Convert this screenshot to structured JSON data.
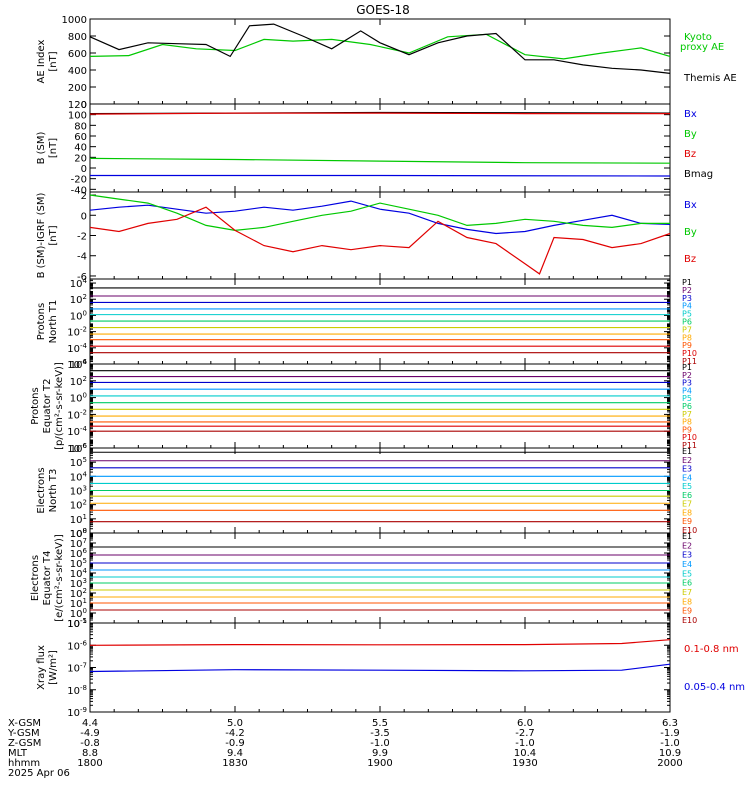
{
  "title": "GOES-18",
  "colors": {
    "black": "#000000",
    "red": "#e00000",
    "green": "#00c800",
    "blue": "#0000e0",
    "xray_red": "#e00000",
    "xray_blue": "#0000e0",
    "channels11": [
      "#000000",
      "#6a006a",
      "#0000cc",
      "#0099ff",
      "#00cccc",
      "#00cc66",
      "#cccc00",
      "#ffaa00",
      "#ff5500",
      "#dd0000",
      "#aa0000"
    ],
    "channels10": [
      "#000000",
      "#6a006a",
      "#0000cc",
      "#0099ff",
      "#00cccc",
      "#00cc66",
      "#cccc00",
      "#ffaa00",
      "#ff5500",
      "#aa0000"
    ]
  },
  "x_axis": {
    "xlim": [
      1800,
      2000
    ],
    "ticks": [
      1800,
      1830,
      1900,
      1930,
      2000
    ],
    "rows": [
      {
        "label": "X-GSM",
        "values": [
          "4.4",
          "5.0",
          "5.5",
          "6.0",
          "6.3"
        ]
      },
      {
        "label": "Y-GSM",
        "values": [
          "-4.9",
          "-4.2",
          "-3.5",
          "-2.7",
          "-1.9"
        ]
      },
      {
        "label": "Z-GSM",
        "values": [
          "-0.8",
          "-0.9",
          "-1.0",
          "-1.0",
          "-1.0"
        ]
      },
      {
        "label": "MLT",
        "values": [
          "8.8",
          "9.4",
          "9.9",
          "10.4",
          "10.9"
        ]
      },
      {
        "label": "hhmm",
        "values": [
          "1800",
          "1830",
          "1900",
          "1930",
          "2000"
        ]
      }
    ],
    "date": "2025 Apr 06"
  },
  "chart_data": [
    {
      "id": "ae",
      "type": "line",
      "ylabel": [
        "AE Index",
        "[nT]"
      ],
      "ylim": [
        0,
        1000
      ],
      "yticks": [
        0,
        200,
        400,
        600,
        800,
        1000
      ],
      "yticklabels": [
        "0",
        "200",
        "400",
        "600",
        "800",
        "1000"
      ],
      "series": [
        {
          "name": "Kyoto proxy AE",
          "color": "#00c800",
          "x": [
            1800,
            1808,
            1815,
            1822,
            1830,
            1836,
            1842,
            1850,
            1858,
            1906,
            1914,
            1922,
            1930,
            1938,
            1946,
            1954,
            2000
          ],
          "values": [
            560,
            570,
            700,
            650,
            630,
            760,
            740,
            760,
            700,
            600,
            790,
            820,
            580,
            530,
            600,
            660,
            560
          ]
        },
        {
          "name": "Themis AE",
          "color": "#000000",
          "x": [
            1800,
            1806,
            1812,
            1818,
            1824,
            1829,
            1833,
            1838,
            1844,
            1850,
            1856,
            1900,
            1906,
            1912,
            1918,
            1924,
            1930,
            1936,
            1942,
            1948,
            1954,
            2000
          ],
          "values": [
            790,
            640,
            720,
            710,
            700,
            560,
            920,
            940,
            800,
            650,
            860,
            720,
            580,
            720,
            800,
            830,
            520,
            520,
            460,
            420,
            400,
            360
          ]
        }
      ],
      "legend": [
        {
          "text": "Kyoto",
          "color": "#00c800"
        },
        {
          "text": "proxy AE",
          "color": "#00c800"
        },
        {
          "text": "Themis AE",
          "color": "#000000"
        }
      ]
    },
    {
      "id": "bsm",
      "type": "line",
      "ylabel": [
        "B (SM)",
        "[nT]"
      ],
      "ylim": [
        -45,
        120
      ],
      "yticks": [
        -40,
        -20,
        0,
        20,
        40,
        60,
        80,
        100,
        120
      ],
      "yticklabels": [
        "-40",
        "-20",
        "0",
        "20",
        "40",
        "60",
        "80",
        "100",
        "120"
      ],
      "series": [
        {
          "name": "Bmag",
          "color": "#000000",
          "x": [
            1800,
            1900,
            2000
          ],
          "values": [
            102,
            104,
            103
          ]
        },
        {
          "name": "Bz",
          "color": "#e00000",
          "x": [
            1800,
            1830,
            1900,
            1930,
            2000
          ],
          "values": [
            101,
            103,
            103,
            102,
            102
          ]
        },
        {
          "name": "By",
          "color": "#00c800",
          "x": [
            1800,
            1830,
            1900,
            1930,
            2000
          ],
          "values": [
            18,
            16,
            13,
            10,
            9
          ]
        },
        {
          "name": "Bx",
          "color": "#0000e0",
          "x": [
            1800,
            1900,
            2000
          ],
          "values": [
            -14,
            -14,
            -15
          ]
        }
      ],
      "legend": [
        {
          "text": "Bx",
          "color": "#0000e0"
        },
        {
          "text": "By",
          "color": "#00c800"
        },
        {
          "text": "Bz",
          "color": "#e00000"
        },
        {
          "text": "Bmag",
          "color": "#000000"
        }
      ]
    },
    {
      "id": "bdiff",
      "type": "line",
      "ylabel": [
        "B (SM)-IGRF (SM)",
        "[nT]"
      ],
      "ylim": [
        -6.3,
        2.3
      ],
      "yticks": [
        -6,
        -4,
        -2,
        0,
        2
      ],
      "yticklabels": [
        "-6",
        "-4",
        "-2",
        "0",
        "2"
      ],
      "series": [
        {
          "name": "Bx",
          "color": "#0000e0",
          "x": [
            1800,
            1806,
            1812,
            1818,
            1824,
            1830,
            1836,
            1842,
            1848,
            1854,
            1900,
            1906,
            1912,
            1918,
            1924,
            1930,
            1936,
            1942,
            1948,
            1954,
            2000
          ],
          "values": [
            0.5,
            0.8,
            1.0,
            0.6,
            0.2,
            0.4,
            0.8,
            0.5,
            0.9,
            1.4,
            0.6,
            0.2,
            -0.8,
            -1.4,
            -1.8,
            -1.6,
            -1.0,
            -0.5,
            0.0,
            -0.8,
            -0.9
          ]
        },
        {
          "name": "By",
          "color": "#00c800",
          "x": [
            1800,
            1806,
            1812,
            1818,
            1824,
            1830,
            1836,
            1842,
            1848,
            1854,
            1900,
            1906,
            1912,
            1918,
            1924,
            1930,
            1936,
            1942,
            1948,
            1954,
            2000
          ],
          "values": [
            2.0,
            1.6,
            1.2,
            0.2,
            -1.0,
            -1.5,
            -1.2,
            -0.6,
            0.0,
            0.4,
            1.2,
            0.6,
            0.0,
            -1.0,
            -0.8,
            -0.4,
            -0.6,
            -1.0,
            -1.2,
            -0.8,
            -0.8
          ]
        },
        {
          "name": "Bz",
          "color": "#e00000",
          "x": [
            1800,
            1806,
            1812,
            1818,
            1824,
            1830,
            1836,
            1842,
            1848,
            1854,
            1900,
            1906,
            1912,
            1918,
            1924,
            1930,
            1933,
            1936,
            1942,
            1948,
            1954,
            2000
          ],
          "values": [
            -1.2,
            -1.6,
            -0.8,
            -0.4,
            0.8,
            -1.5,
            -3.0,
            -3.6,
            -3.0,
            -3.4,
            -3.0,
            -3.2,
            -0.6,
            -2.2,
            -2.8,
            -4.8,
            -5.8,
            -2.2,
            -2.4,
            -3.2,
            -2.8,
            -1.8
          ]
        }
      ],
      "legend": [
        {
          "text": "Bx",
          "color": "#0000e0"
        },
        {
          "text": "By",
          "color": "#00c800"
        },
        {
          "text": "Bz",
          "color": "#e00000"
        }
      ]
    },
    {
      "id": "p_north",
      "type": "line",
      "log": true,
      "ylabel": [
        "Protons",
        "North T1"
      ],
      "ylim_exp": [
        -6,
        4.5
      ],
      "yticks_exp": [
        -6,
        -4,
        -2,
        0,
        2,
        4
      ],
      "series_log": [
        3.4,
        2.4,
        1.6,
        0.8,
        0.1,
        -0.7,
        -1.5,
        -2.3,
        -3.0,
        -3.8,
        -4.6
      ],
      "legend": [
        "P1",
        "P2",
        "P3",
        "P4",
        "P5",
        "P6",
        "P7",
        "P8",
        "P9",
        "P10",
        "P11"
      ]
    },
    {
      "id": "p_equator",
      "type": "line",
      "log": true,
      "ylabel": [
        "Protons",
        "Equator T2",
        "[p/(cm²-s-sr-keV)]"
      ],
      "ylim_exp": [
        -6,
        4
      ],
      "yticks_exp": [
        -6,
        -4,
        -2,
        0,
        2,
        4
      ],
      "series_log": [
        3.2,
        2.5,
        1.8,
        1.0,
        0.2,
        -0.6,
        -1.4,
        -2.2,
        -2.9,
        -3.4,
        -4.0
      ],
      "legend": [
        "P1",
        "P2",
        "P3",
        "P4",
        "P5",
        "P6",
        "P7",
        "P8",
        "P9",
        "P10",
        "P11"
      ]
    },
    {
      "id": "e_north",
      "type": "line",
      "log": true,
      "ylabel": [
        "Electrons",
        "North T3"
      ],
      "ylim_exp": [
        0,
        6
      ],
      "yticks_exp": [
        0,
        1,
        2,
        3,
        4,
        5,
        6
      ],
      "series_log": [
        5.7,
        5.1,
        4.6,
        4.0,
        3.5,
        3.0,
        2.6,
        2.1,
        1.6,
        0.8
      ],
      "legend": [
        "E1",
        "E2",
        "E3",
        "E4",
        "E5",
        "E6",
        "E7",
        "E8",
        "E9",
        "E10"
      ]
    },
    {
      "id": "e_equator",
      "type": "line",
      "log": true,
      "ylabel": [
        "Electrons",
        "Equator T4",
        "[e/(cm²-s-sr-keV)]"
      ],
      "ylim_exp": [
        -1,
        8
      ],
      "yticks_exp": [
        -1,
        0,
        1,
        2,
        3,
        4,
        5,
        6,
        7,
        8
      ],
      "series_log": [
        6.6,
        5.8,
        5.0,
        4.3,
        3.6,
        3.0,
        2.3,
        1.6,
        1.0,
        0.3
      ],
      "legend": [
        "E1",
        "E2",
        "E3",
        "E4",
        "E5",
        "E6",
        "E7",
        "E8",
        "E9",
        "E10"
      ]
    },
    {
      "id": "xray",
      "type": "line",
      "log": true,
      "ylabel": [
        "Xray flux",
        "[W/m²]"
      ],
      "ylim_exp": [
        -9,
        -5
      ],
      "yticks_exp": [
        -9,
        -8,
        -7,
        -6,
        -5
      ],
      "series": [
        {
          "name": "0.1-0.8 nm",
          "color": "#e00000",
          "x": [
            1800,
            1830,
            1900,
            1930,
            1950,
            2000
          ],
          "values_exp": [
            -6.0,
            -5.97,
            -5.98,
            -5.97,
            -5.92,
            -5.75
          ]
        },
        {
          "name": "0.05-0.4 nm",
          "color": "#0000e0",
          "x": [
            1800,
            1830,
            1900,
            1930,
            1950,
            2000
          ],
          "values_exp": [
            -7.18,
            -7.1,
            -7.12,
            -7.15,
            -7.12,
            -6.85
          ]
        }
      ],
      "legend": [
        {
          "text": "0.1-0.8 nm",
          "color": "#e00000"
        },
        {
          "text": "0.05-0.4 nm",
          "color": "#0000e0"
        }
      ]
    }
  ]
}
